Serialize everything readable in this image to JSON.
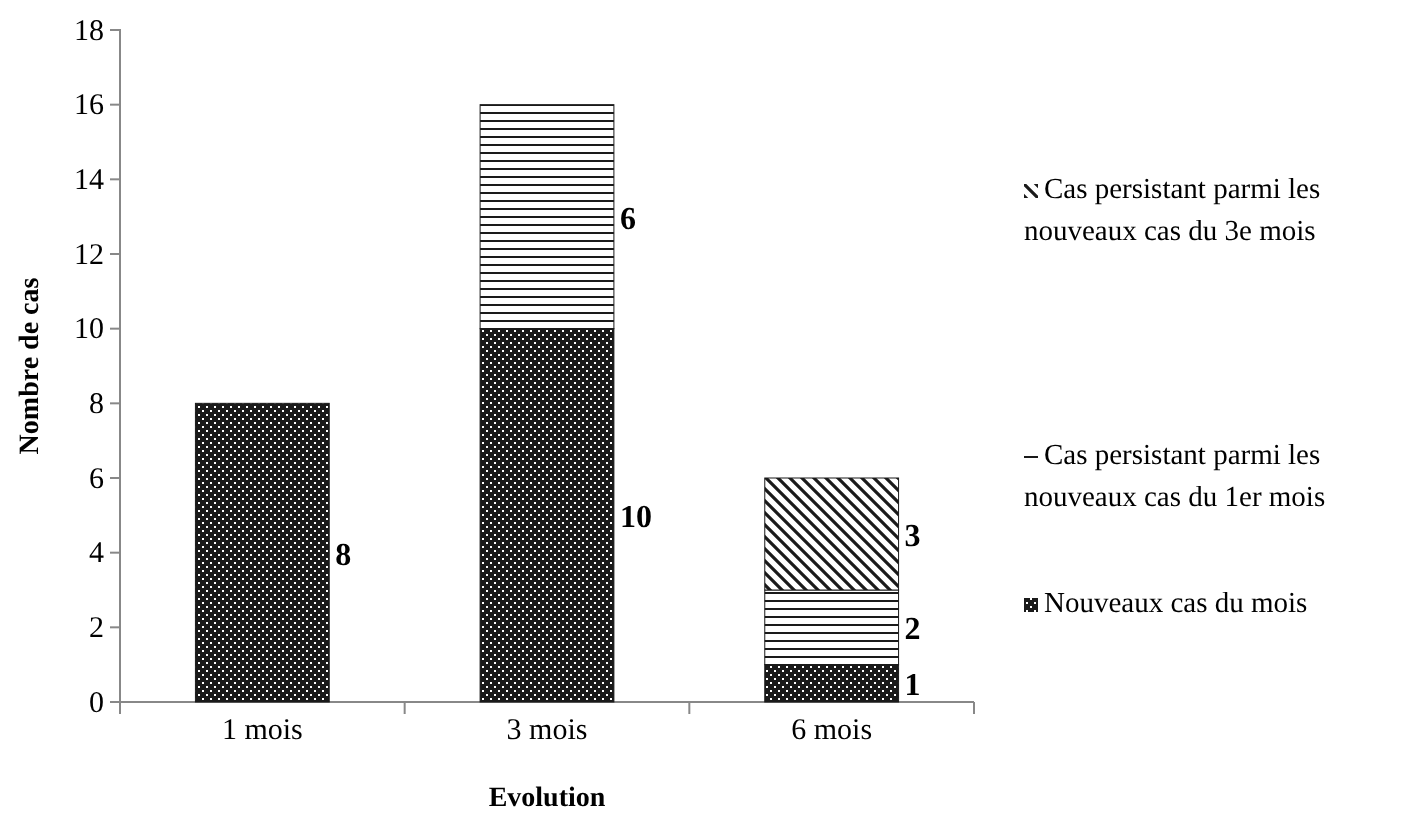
{
  "chart_data": {
    "type": "bar",
    "stacked": true,
    "xlabel": "Evolution",
    "ylabel": "Nombre de cas",
    "categories": [
      "1 mois",
      "3 mois",
      "6 mois"
    ],
    "series": [
      {
        "name": "Nouveaux cas du mois",
        "color": "#1a1a1a",
        "values": [
          8,
          10,
          1
        ]
      },
      {
        "name": "Cas persistant parmi les nouveaux cas du 1er mois",
        "color": "#1a1a1a",
        "values": [
          null,
          6,
          2
        ]
      },
      {
        "name": "Cas persistant parmi les nouveaux cas du 3e mois",
        "color": "#1a1a1a",
        "values": [
          null,
          null,
          3
        ]
      }
    ],
    "ylim": [
      0,
      18
    ],
    "yticks": [
      0,
      2,
      4,
      6,
      8,
      10,
      12,
      14,
      16,
      18
    ],
    "grid": false,
    "legend": "right",
    "data_labels": true
  }
}
